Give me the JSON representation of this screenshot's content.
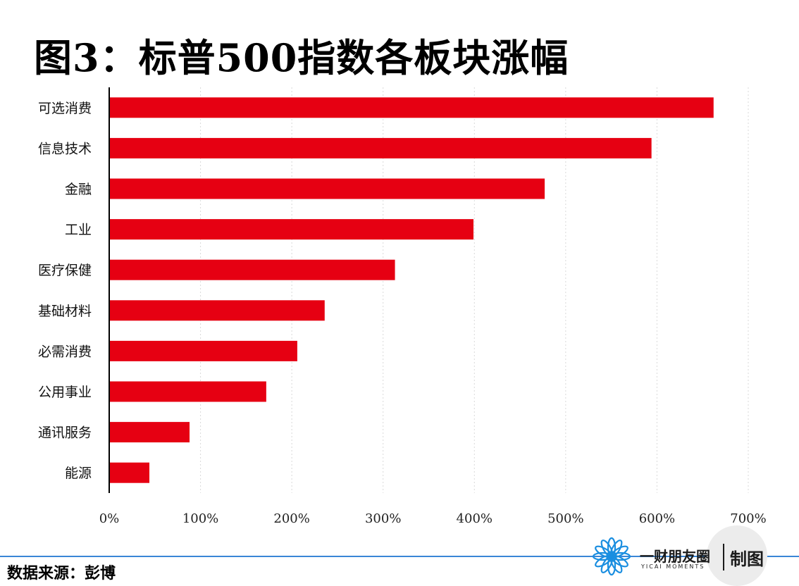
{
  "chart_data": {
    "type": "bar",
    "orientation": "horizontal",
    "title": "图3：标普500指数各板块涨幅",
    "categories": [
      "可选消费",
      "信息技术",
      "金融",
      "工业",
      "医疗保健",
      "基础材料",
      "必需消费",
      "公用事业",
      "通讯服务",
      "能源"
    ],
    "values": [
      662,
      594,
      477,
      399,
      313,
      236,
      206,
      172,
      88,
      44
    ],
    "xlim": [
      0,
      700
    ],
    "xticks": [
      "0%",
      "100%",
      "200%",
      "300%",
      "400%",
      "500%",
      "600%",
      "700%"
    ],
    "xtick_values": [
      0,
      100,
      200,
      300,
      400,
      500,
      600,
      700
    ],
    "xlabel": "",
    "ylabel": "",
    "grid": "vertical dotted",
    "bar_color": "#e60012"
  },
  "footer": {
    "source": "数据来源：彭博",
    "brand_name": "一财朋友圈",
    "brand_sub": "YICAI MOMENTS",
    "brand_made": "制图",
    "brand_icon": "yicai-flower-icon",
    "line_color": "#3a86d6"
  }
}
